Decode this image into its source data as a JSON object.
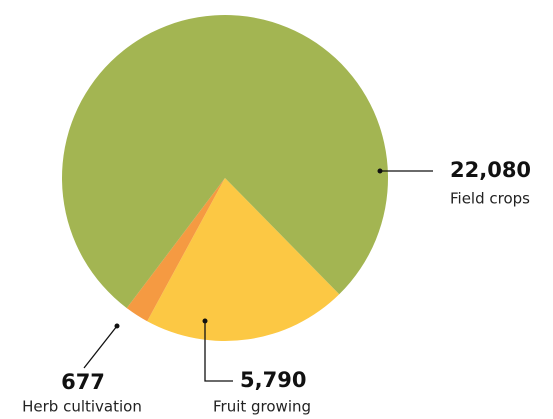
{
  "chart_data": {
    "type": "pie",
    "categories": [
      "Field crops",
      "Fruit growing",
      "Herb cultivation"
    ],
    "values": [
      22080,
      5790,
      677
    ],
    "value_labels": [
      "22,080",
      "5,790",
      "677"
    ],
    "colors": [
      "#a3b552",
      "#fcc844",
      "#f59a42"
    ]
  }
}
